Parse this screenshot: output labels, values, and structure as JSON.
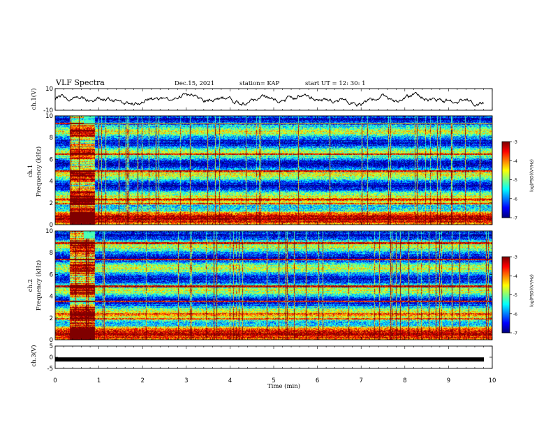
{
  "header": {
    "title": "VLF Spectra",
    "date": "Dec.15, 2021",
    "station": "station= KAP",
    "start": "start  UT =   12: 30: 1"
  },
  "chart_data": [
    {
      "type": "line",
      "panel": "ch1-waveform",
      "ylabel": "ch.1(V)",
      "ylim": [
        -10,
        10
      ],
      "yticks": [
        "10",
        "-10"
      ],
      "xlim": [
        0,
        10
      ],
      "color": "#000000"
    },
    {
      "type": "heatmap",
      "panel": "ch1-spectrogram",
      "ylabel": "ch.1\nFrequency (kHz)",
      "ylim": [
        0,
        10
      ],
      "yticks": [
        "0",
        "2",
        "4",
        "6",
        "8",
        "10"
      ],
      "xlim": [
        0,
        10
      ],
      "colorbar": {
        "label": "log(PSD)(V²/Hz)",
        "range": [
          -7,
          -3
        ],
        "ticks": [
          "-3",
          "-4",
          "-5",
          "-6",
          "-7"
        ]
      },
      "intense_interval_min": [
        0.33,
        0.9
      ],
      "strong_lines_khz": [
        0.3,
        1.9,
        2.3,
        4.9,
        6.5,
        9.3
      ]
    },
    {
      "type": "heatmap",
      "panel": "ch2-spectrogram",
      "ylabel": "ch.2\nFrequency (kHz)",
      "ylim": [
        0,
        10
      ],
      "yticks": [
        "0",
        "2",
        "4",
        "6",
        "8",
        "10"
      ],
      "xlim": [
        0,
        10
      ],
      "colorbar": {
        "label": "log(PSD)(V²/Hz)",
        "range": [
          -7,
          -3
        ],
        "ticks": [
          "-3",
          "-4",
          "-5",
          "-6",
          "-7"
        ]
      },
      "intense_interval_min": [
        0.33,
        0.9
      ],
      "strong_lines_khz": [
        0.3,
        1.9,
        3.5,
        4.9,
        7.4,
        8.9
      ]
    },
    {
      "type": "line",
      "panel": "ch3",
      "ylabel": "ch.3(V)",
      "ylim": [
        -5,
        5
      ],
      "yticks": [
        "5",
        "0",
        "-5"
      ],
      "xlim": [
        0,
        10
      ],
      "xlabel": "Time (min)",
      "xticks": [
        "0",
        "1",
        "2",
        "3",
        "4",
        "5",
        "6",
        "7",
        "8",
        "9",
        "10"
      ],
      "level_V": -1,
      "color": "#000000"
    }
  ]
}
